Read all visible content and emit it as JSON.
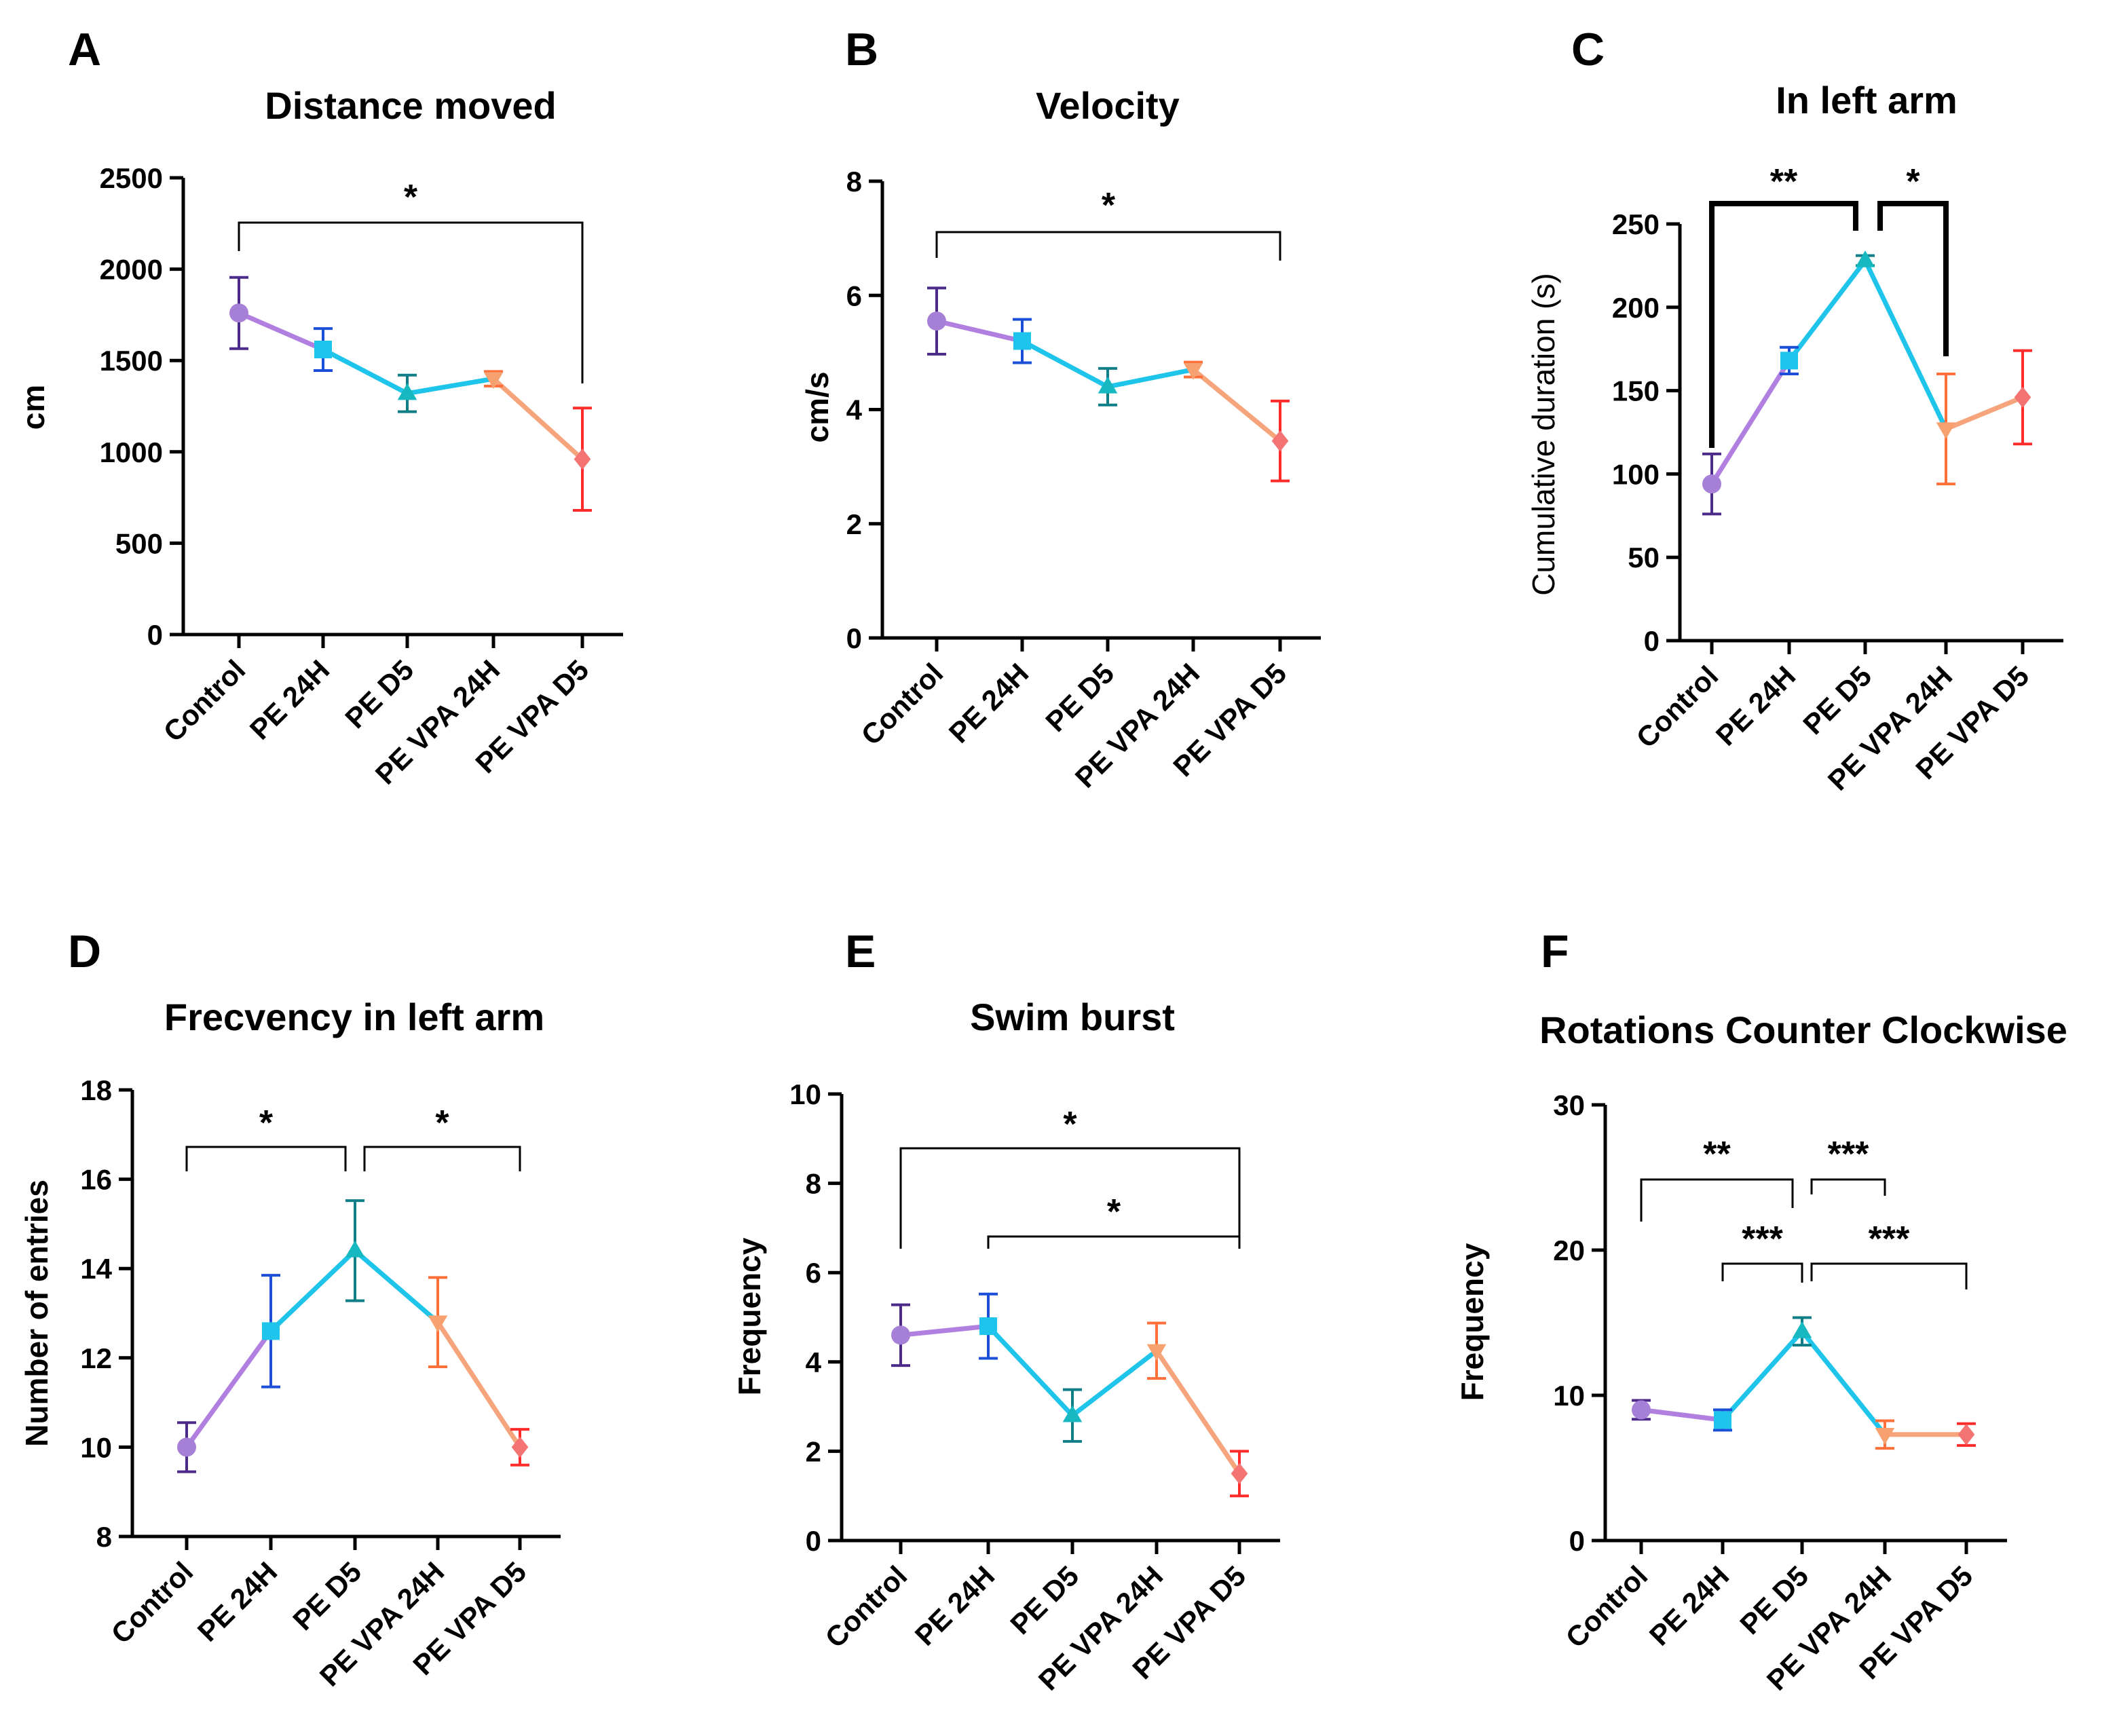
{
  "chart_data": [
    {
      "panel": "A",
      "type": "line",
      "title": "Distance moved",
      "ylabel": "cm",
      "ylim": [
        0,
        2500
      ],
      "yticks": [
        0,
        500,
        1000,
        1500,
        2000,
        2500
      ],
      "categories": [
        "Control",
        "PE 24H",
        "PE D5",
        "PE VPA 24H",
        "PE VPA D5"
      ],
      "values": [
        1760,
        1560,
        1320,
        1400,
        960
      ],
      "errors": [
        195,
        115,
        100,
        40,
        280
      ],
      "significance": [
        {
          "from": 0,
          "to": 4,
          "label": "*"
        }
      ]
    },
    {
      "panel": "B",
      "type": "line",
      "title": "Velocity",
      "ylabel": "cm/s",
      "ylim": [
        0,
        8
      ],
      "yticks": [
        0,
        2,
        4,
        6,
        8
      ],
      "categories": [
        "Control",
        "PE 24H",
        "PE D5",
        "PE VPA 24H",
        "PE VPA D5"
      ],
      "values": [
        5.55,
        5.2,
        4.4,
        4.7,
        3.45
      ],
      "errors": [
        0.58,
        0.38,
        0.32,
        0.13,
        0.7
      ],
      "significance": [
        {
          "from": 0,
          "to": 4,
          "label": "*"
        }
      ]
    },
    {
      "panel": "C",
      "type": "line",
      "title": "In left arm",
      "ylabel": "Cumulative duration (s)",
      "ylim": [
        0,
        250
      ],
      "yticks": [
        0,
        50,
        100,
        150,
        200,
        250
      ],
      "categories": [
        "Control",
        "PE 24H",
        "PE D5",
        "PE VPA 24H",
        "PE VPA D5"
      ],
      "values": [
        94,
        168,
        228,
        127,
        146
      ],
      "errors": [
        18,
        8,
        3,
        33,
        28
      ],
      "significance": [
        {
          "from": 0,
          "to": 2,
          "label": "**"
        },
        {
          "from": 2,
          "to": 3,
          "label": "*"
        }
      ]
    },
    {
      "panel": "D",
      "type": "line",
      "title": "Frecvency in left arm",
      "ylabel": "Number of entries",
      "ylim": [
        8,
        18
      ],
      "yticks": [
        8,
        10,
        12,
        14,
        16,
        18
      ],
      "categories": [
        "Control",
        "PE 24H",
        "PE D5",
        "PE VPA 24H",
        "PE VPA D5"
      ],
      "values": [
        10.0,
        12.6,
        14.4,
        12.8,
        10.0
      ],
      "errors": [
        0.55,
        1.25,
        1.12,
        1.0,
        0.4
      ],
      "significance": [
        {
          "from": 0,
          "to": 2,
          "label": "*"
        },
        {
          "from": 2,
          "to": 4,
          "label": "*"
        }
      ]
    },
    {
      "panel": "E",
      "type": "line",
      "title": "Swim burst",
      "ylabel": "Frequency",
      "ylim": [
        0,
        10
      ],
      "yticks": [
        0,
        2,
        4,
        6,
        8,
        10
      ],
      "categories": [
        "Control",
        "PE 24H",
        "PE D5",
        "PE VPA 24H",
        "PE VPA D5"
      ],
      "values": [
        4.6,
        4.8,
        2.8,
        4.25,
        1.5
      ],
      "errors": [
        0.68,
        0.72,
        0.58,
        0.62,
        0.5
      ],
      "significance": [
        {
          "from": 0,
          "to": 4,
          "label": "*"
        },
        {
          "from": 1,
          "to": 4,
          "label": "*"
        }
      ]
    },
    {
      "panel": "F",
      "type": "line",
      "title": "Rotations Counter Clockwise",
      "ylabel": "Frequency",
      "ylim": [
        0,
        30
      ],
      "yticks": [
        0,
        10,
        20,
        30
      ],
      "categories": [
        "Control",
        "PE 24H",
        "PE D5",
        "PE VPA 24H",
        "PE VPA D5"
      ],
      "values": [
        9.0,
        8.3,
        14.4,
        7.3,
        7.3
      ],
      "errors": [
        0.65,
        0.7,
        0.95,
        0.95,
        0.75
      ],
      "significance": [
        {
          "from": 0,
          "to": 2,
          "label": "**"
        },
        {
          "from": 2,
          "to": 3,
          "label": "***"
        },
        {
          "from": 1,
          "to": 2,
          "label": "***"
        },
        {
          "from": 2,
          "to": 4,
          "label": "***"
        }
      ]
    }
  ],
  "colors": {
    "marker": [
      "#a67fd6",
      "#1ec4ec",
      "#18b8c0",
      "#f7a070",
      "#f47373"
    ],
    "errorbar": [
      "#4b2a8a",
      "#1b4fd8",
      "#0f7e86",
      "#ff6f3a",
      "#ff2b2b"
    ],
    "segment": [
      "#b07fe0",
      "#1fc4ea",
      "#1fc4ea",
      "#f6a47c"
    ],
    "axis": "#000000"
  },
  "markers": [
    "circle",
    "square",
    "triangle-up",
    "triangle-down",
    "diamond"
  ]
}
